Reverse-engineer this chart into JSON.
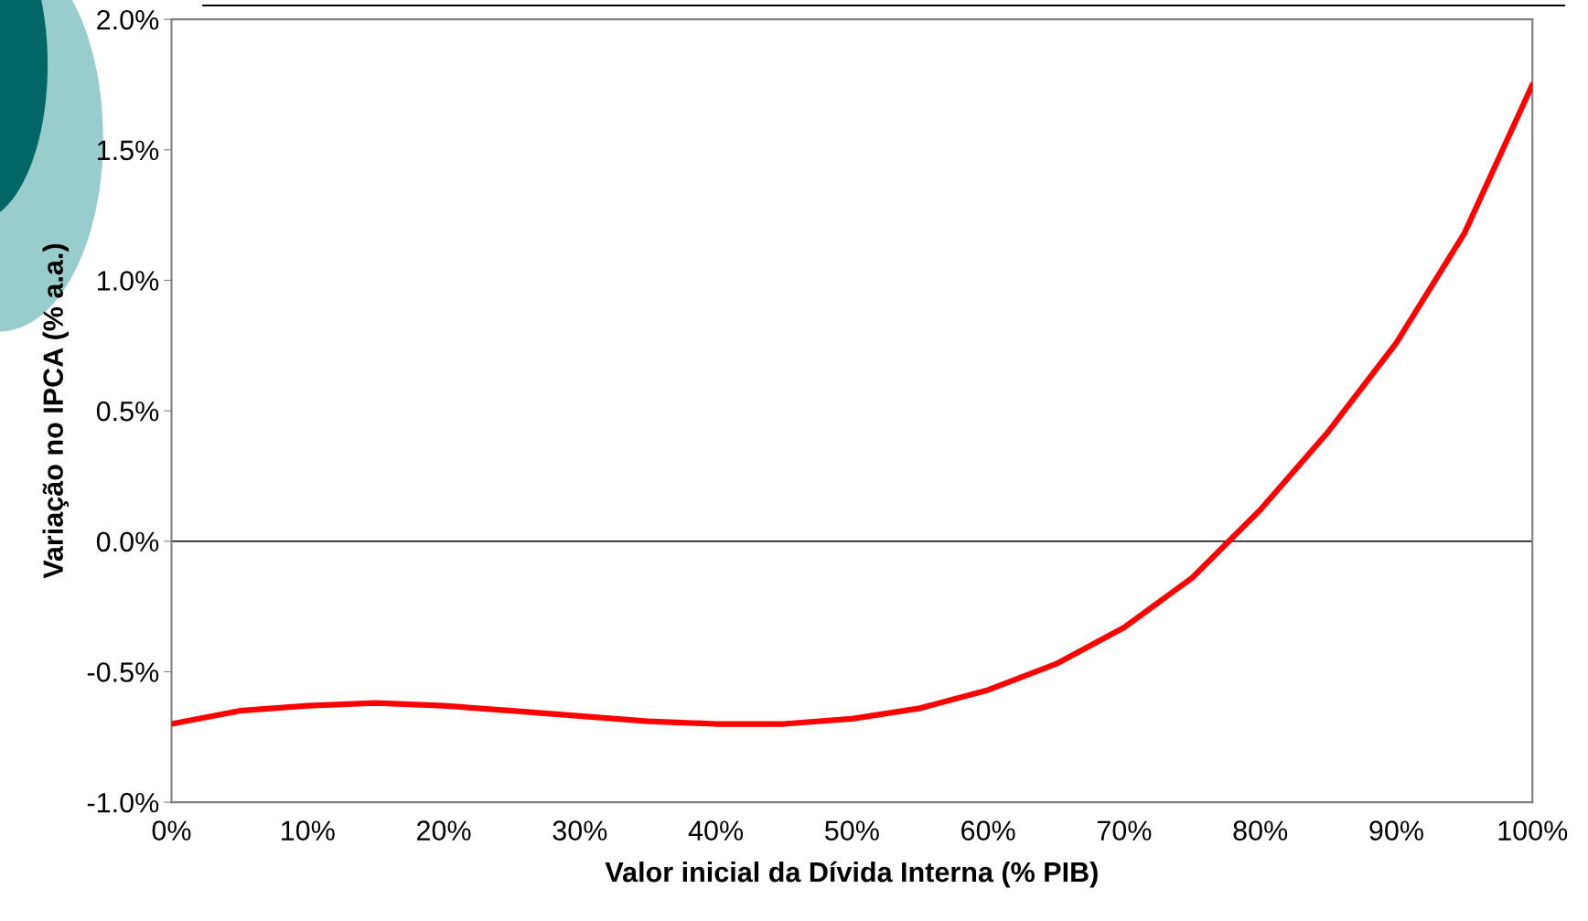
{
  "chart_data": {
    "type": "line",
    "xlabel": "Valor inicial da Dívida Interna (% PIB)",
    "ylabel": "Variação no IPCA (% a.a.)",
    "x": [
      0,
      5,
      10,
      15,
      20,
      25,
      30,
      35,
      40,
      45,
      50,
      55,
      60,
      65,
      70,
      75,
      80,
      85,
      90,
      95,
      100
    ],
    "series": [
      {
        "color": "#ff0000",
        "values": [
          -0.7,
          -0.65,
          -0.63,
          -0.62,
          -0.63,
          -0.65,
          -0.67,
          -0.69,
          -0.7,
          -0.7,
          -0.68,
          -0.64,
          -0.57,
          -0.47,
          -0.33,
          -0.14,
          0.12,
          0.42,
          0.76,
          1.18,
          1.75
        ]
      }
    ],
    "xlim": [
      0,
      100
    ],
    "xticks": [
      {
        "value": 0,
        "label": "0%"
      },
      {
        "value": 10,
        "label": "10%"
      },
      {
        "value": 20,
        "label": "20%"
      },
      {
        "value": 30,
        "label": "30%"
      },
      {
        "value": 40,
        "label": "40%"
      },
      {
        "value": 50,
        "label": "50%"
      },
      {
        "value": 60,
        "label": "60%"
      },
      {
        "value": 70,
        "label": "70%"
      },
      {
        "value": 80,
        "label": "80%"
      },
      {
        "value": 90,
        "label": "90%"
      },
      {
        "value": 100,
        "label": "100%"
      }
    ],
    "ylim": [
      -1.0,
      2.0
    ],
    "yticks": [
      {
        "value": -1.0,
        "label": "-1.0%"
      },
      {
        "value": -0.5,
        "label": "-0.5%"
      },
      {
        "value": 0.0,
        "label": "0.0%"
      },
      {
        "value": 0.5,
        "label": "0.5%"
      },
      {
        "value": 1.0,
        "label": "1.0%"
      },
      {
        "value": 1.5,
        "label": "1.5%"
      },
      {
        "value": 2.0,
        "label": "2.0%"
      }
    ],
    "ref_lines": [
      {
        "axis": "y",
        "value": 0,
        "color": "#000000"
      }
    ],
    "grid": false,
    "legend": false,
    "marker": "none",
    "line_style": "solid"
  }
}
